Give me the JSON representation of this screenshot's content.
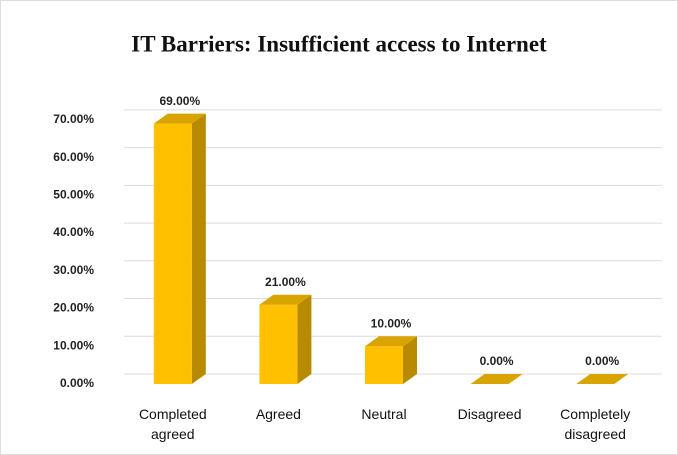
{
  "chart_data": {
    "type": "bar3d",
    "title": "IT Barriers: Insufficient access to Internet",
    "categories": [
      "Completed agreed",
      "Agreed",
      "Neutral",
      "Disagreed",
      "Completely disagreed"
    ],
    "values": [
      69,
      21,
      10,
      0,
      0
    ],
    "value_labels": [
      "69.00%",
      "21.00%",
      "10.00%",
      "0.00%",
      "0.00%"
    ],
    "color": "#ffc000",
    "ylim": [
      0,
      75
    ],
    "yticks": [
      {
        "value": 0,
        "label": "0.00%"
      },
      {
        "value": 10,
        "label": "10.00%"
      },
      {
        "value": 20,
        "label": "20.00%"
      },
      {
        "value": 30,
        "label": "30.00%"
      },
      {
        "value": 40,
        "label": "40.00%"
      },
      {
        "value": 50,
        "label": "50.00%"
      },
      {
        "value": 60,
        "label": "60.00%"
      },
      {
        "value": 70,
        "label": "70.00%"
      }
    ],
    "grid": true
  }
}
